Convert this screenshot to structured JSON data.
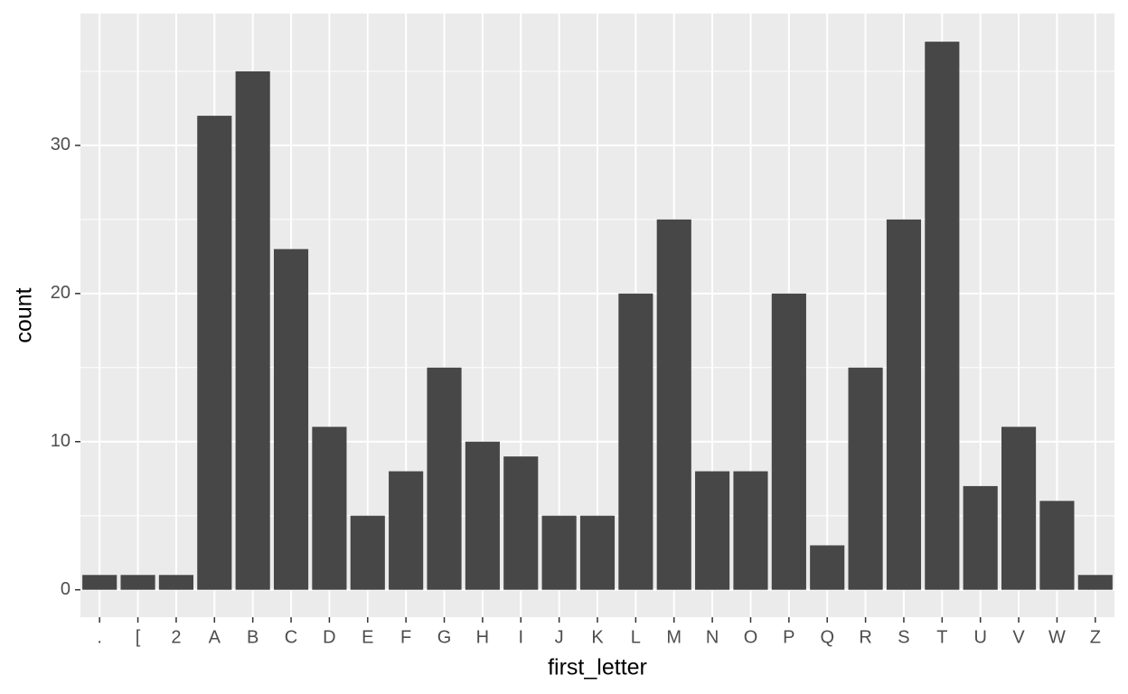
{
  "chart_data": {
    "type": "bar",
    "x_label": "first_letter",
    "y_label": "count",
    "categories": [
      ".",
      "[",
      "2",
      "A",
      "B",
      "C",
      "D",
      "E",
      "F",
      "G",
      "H",
      "I",
      "J",
      "K",
      "L",
      "M",
      "N",
      "O",
      "P",
      "Q",
      "R",
      "S",
      "T",
      "U",
      "V",
      "W",
      "Z"
    ],
    "values": [
      1,
      1,
      1,
      32,
      35,
      23,
      11,
      5,
      8,
      15,
      10,
      9,
      5,
      5,
      20,
      25,
      8,
      8,
      20,
      3,
      15,
      25,
      37,
      7,
      11,
      6,
      1
    ],
    "color": "#474747",
    "ylim": [
      -1.85,
      38.9
    ],
    "yticks": [
      0,
      10,
      20,
      30
    ],
    "grid": true
  }
}
